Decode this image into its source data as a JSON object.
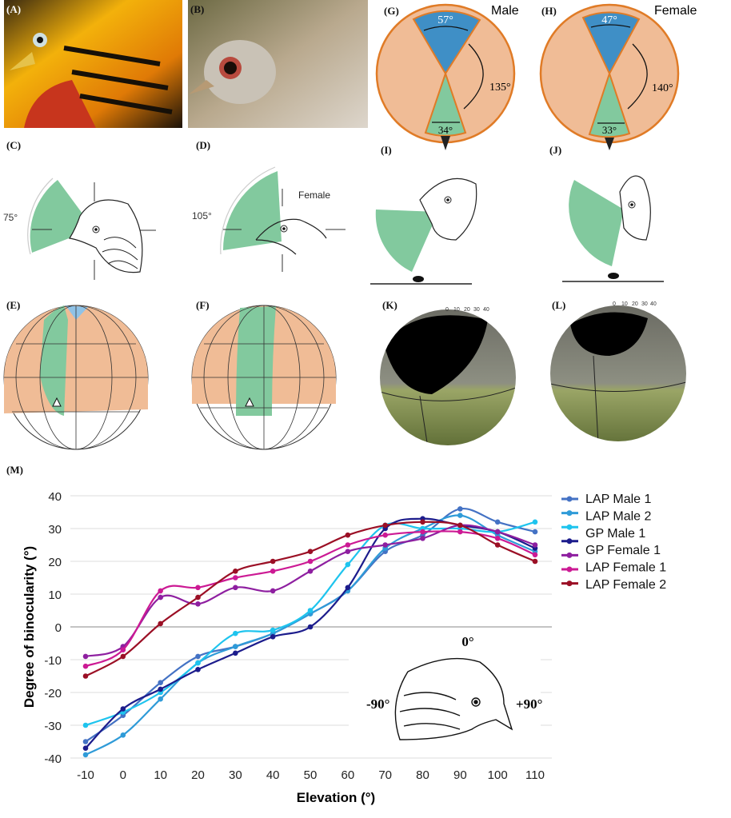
{
  "panels": {
    "A": "(A)",
    "B": "(B)",
    "C": "(C)",
    "D": "(D)",
    "E": "(E)",
    "F": "(F)",
    "G": "(G)",
    "H": "(H)",
    "I": "(I)",
    "J": "(J)",
    "K": "(K)",
    "L": "(L)",
    "M": "(M)"
  },
  "panel_C": {
    "angle": "75°"
  },
  "panel_D": {
    "angle": "105°",
    "sex": "Female"
  },
  "panel_G": {
    "sex": "Male",
    "binocular_top": "57°",
    "blind": "135°",
    "binocular_bottom": "34°"
  },
  "panel_H": {
    "sex": "Female",
    "binocular_top": "47°",
    "blind": "140°",
    "binocular_bottom": "33°"
  },
  "scale_ticks": [
    "0",
    "10",
    "20",
    "30",
    "40"
  ],
  "colors": {
    "binocular": "#82c99e",
    "blind": "#3f8fc6",
    "monocular": "#f0bc96",
    "outline": "#e07b26"
  },
  "inset": {
    "top": "0°",
    "left": "-90°",
    "right": "+90°"
  },
  "chart_data": {
    "type": "line",
    "xlabel": "Elevation (°)",
    "ylabel": "Degree of binocularity (°)",
    "x": [
      -10,
      0,
      10,
      20,
      30,
      40,
      50,
      60,
      70,
      80,
      90,
      100,
      110
    ],
    "x_ticks": [
      "-10",
      "0",
      "10",
      "20",
      "30",
      "40",
      "50",
      "60",
      "70",
      "80",
      "90",
      "100",
      "110"
    ],
    "y_ticks": [
      "40",
      "30",
      "20",
      "10",
      "0",
      "-10",
      "-20",
      "-30",
      "-40"
    ],
    "xlim": [
      -10,
      110
    ],
    "ylim": [
      -40,
      40
    ],
    "grid": true,
    "legend": "right",
    "series": [
      {
        "name": "LAP Male 1",
        "color": "#4472c4",
        "values": [
          -35,
          -27,
          -17,
          -9,
          -6,
          -2,
          4,
          11,
          23,
          28,
          36,
          32,
          29
        ]
      },
      {
        "name": "LAP Male 2",
        "color": "#2f9bd8",
        "values": [
          -39,
          -33,
          -22,
          -11,
          -6,
          -2,
          4,
          11,
          24,
          30,
          34,
          28,
          23
        ]
      },
      {
        "name": "GP Male 1",
        "color": "#1ec4ee",
        "values": [
          -30,
          -26,
          -20,
          -11,
          -2,
          -1,
          5,
          19,
          31,
          30,
          30,
          29,
          32
        ]
      },
      {
        "name": "GP Female 1",
        "color": "#1c1c8c",
        "values": [
          -37,
          -25,
          -19,
          -13,
          -8,
          -3,
          0,
          12,
          30,
          33,
          31,
          29,
          24
        ]
      },
      {
        "name": "",
        "color": "#8e1fa0",
        "values": [
          -9,
          -6,
          9,
          7,
          12,
          11,
          17,
          23,
          25,
          27,
          31,
          29,
          25
        ]
      },
      {
        "name": "LAP Female 1",
        "color": "#cc1a94",
        "values": [
          -12,
          -7,
          11,
          12,
          15,
          17,
          20,
          25,
          28,
          29,
          29,
          27,
          22
        ]
      },
      {
        "name": "LAP Female 2",
        "color": "#9b0f25",
        "values": [
          -15,
          -9,
          1,
          9,
          17,
          20,
          23,
          28,
          31,
          32,
          31,
          25,
          20
        ]
      }
    ],
    "legend_labels": [
      "LAP Male 1",
      "LAP Male 2",
      "GP Male 1",
      "GP Female 1",
      "LAP Female 1",
      "LAP Female 2"
    ]
  }
}
